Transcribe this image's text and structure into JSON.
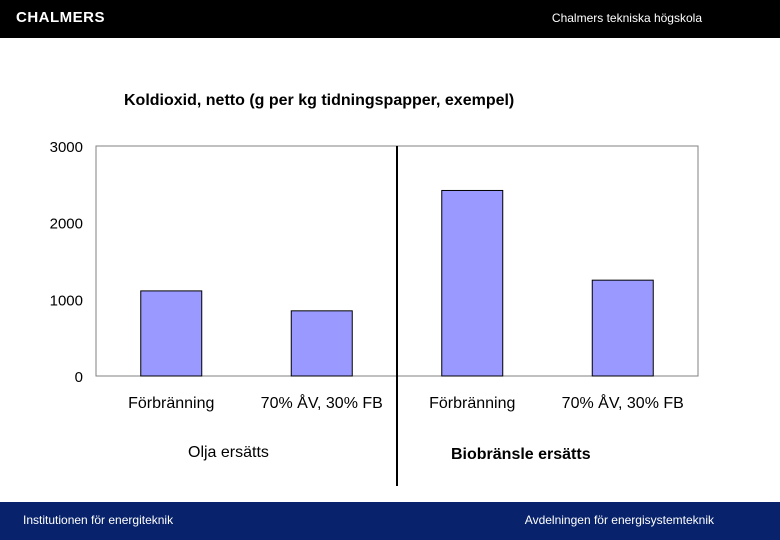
{
  "header": {
    "logo_text": "CHALMERS",
    "institution": "Chalmers tekniska högskola"
  },
  "footer": {
    "left": "Institutionen för energiteknik",
    "right": "Avdelningen för energisystemteknik"
  },
  "group_labels": {
    "left": "Olja ersätts",
    "right": "Biobränsle ersätts"
  },
  "colors": {
    "bar": "#9999ff",
    "header_bg": "#000000",
    "footer_bg": "#08236b"
  },
  "chart_data": {
    "type": "bar",
    "title": "Koldioxid, netto (g per kg tidningspapper, exempel)",
    "categories": [
      "Förbränning",
      "70% ÅV, 30% FB",
      "Förbränning",
      "70% ÅV, 30% FB"
    ],
    "values": [
      1110,
      850,
      2420,
      1250
    ],
    "ylim": [
      0,
      3000
    ],
    "yticks": [
      0,
      1000,
      2000,
      3000
    ],
    "xlabel": "",
    "ylabel": "",
    "grid": false
  }
}
